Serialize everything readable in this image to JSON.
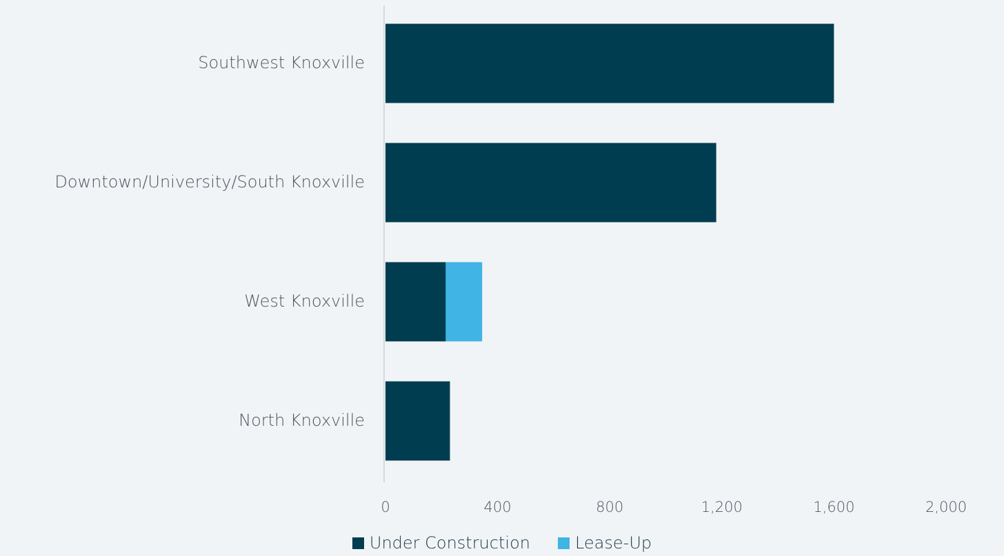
{
  "colors": {
    "background": "#f1f4f6",
    "under_construction": "#003d50",
    "lease_up": "#3fb4e5",
    "axis_line": "#d5dadf",
    "label_text": "#4a5560"
  },
  "chart_data": {
    "type": "bar",
    "orientation": "horizontal",
    "stacked": true,
    "categories": [
      "Southwest Knoxville",
      "Downtown/University/South Knoxville",
      "West Knoxville",
      "North Knoxville"
    ],
    "series": [
      {
        "name": "Under Construction",
        "color": "#003d50",
        "values": [
          1600,
          1180,
          215,
          230
        ]
      },
      {
        "name": "Lease-Up",
        "color": "#3fb4e5",
        "values": [
          0,
          0,
          130,
          0
        ]
      }
    ],
    "xlim": [
      0,
      2000
    ],
    "x_ticks": [
      "0",
      "400",
      "800",
      "1,200",
      "1,600",
      "2,000"
    ],
    "x_tick_values": [
      0,
      400,
      800,
      1200,
      1600,
      2000
    ],
    "grid": false,
    "legend_position": "bottom-center"
  }
}
